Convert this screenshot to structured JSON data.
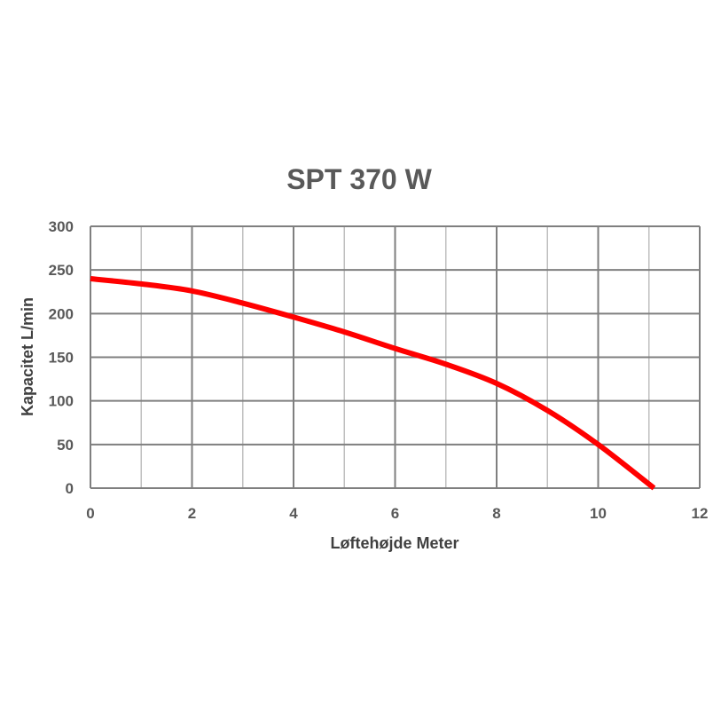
{
  "chart_data": {
    "type": "line",
    "title": "SPT 370 W",
    "xlabel": "Løftehøjde Meter",
    "ylabel": "Kapacitet L/min",
    "xlim": [
      0,
      12
    ],
    "ylim": [
      0,
      300
    ],
    "x_ticks": [
      0,
      2,
      4,
      6,
      8,
      10,
      12
    ],
    "y_ticks": [
      0,
      50,
      100,
      150,
      200,
      250,
      300
    ],
    "x_tick_labels": [
      "0",
      "2",
      "4",
      "6",
      "8",
      "10",
      "12"
    ],
    "y_tick_labels": [
      "0",
      "50",
      "100",
      "150",
      "200",
      "250",
      "300"
    ],
    "x_minor_step": 1,
    "grid": true,
    "legend": "none",
    "series": [
      {
        "color": "#ff0000",
        "x": [
          0,
          1,
          2,
          3,
          4,
          5,
          6,
          7,
          8,
          9,
          10,
          11.1
        ],
        "y": [
          240,
          234,
          226,
          212,
          196,
          179,
          160,
          142,
          120,
          89,
          50,
          0
        ]
      }
    ],
    "colors": {
      "grid_major": "#7f7f7f",
      "grid_minor": "#bfbfbf",
      "line": "#ff0000"
    }
  }
}
